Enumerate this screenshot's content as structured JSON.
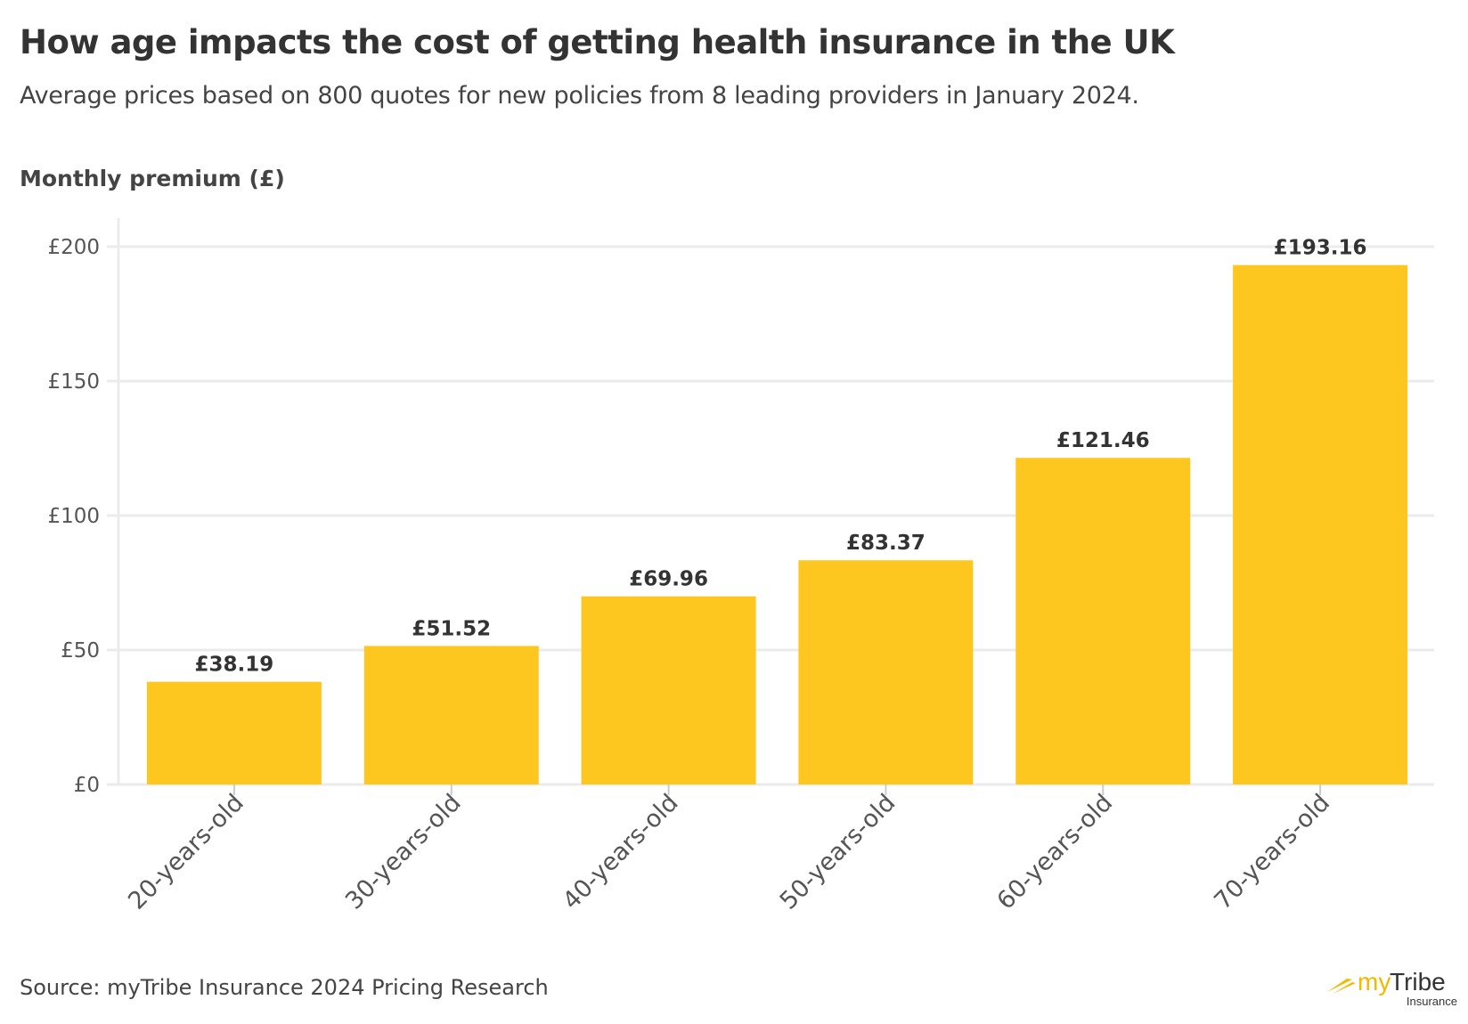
{
  "title": "How age impacts the cost of getting health insurance in the UK",
  "subtitle": "Average prices based on 800 quotes for new policies from 8 leading providers in January 2024.",
  "source": "Source: myTribe Insurance 2024 Pricing Research",
  "logo": {
    "brand_my": "my",
    "brand_tribe": "Tribe",
    "tagline": "Insurance"
  },
  "colors": {
    "bar": "#FEC720",
    "grid": "#EBEBEB",
    "brand": "#F5B800"
  },
  "chart_data": {
    "type": "bar",
    "title": "How age impacts the cost of getting health insurance in the UK",
    "ylabel": "Monthly premium (£)",
    "xlabel": "",
    "categories": [
      "20-years-old",
      "30-years-old",
      "40-years-old",
      "50-years-old",
      "60-years-old",
      "70-years-old"
    ],
    "values": [
      38.19,
      51.52,
      69.96,
      83.37,
      121.46,
      193.16
    ],
    "data_labels": [
      "£38.19",
      "£51.52",
      "£69.96",
      "£83.37",
      "£121.46",
      "£193.16"
    ],
    "yticks": [
      0,
      50,
      100,
      150,
      200
    ],
    "ytick_labels": [
      "£0",
      "£50",
      "£100",
      "£150",
      "£200"
    ],
    "ylim": [
      0,
      200
    ],
    "grid": true,
    "legend": "none"
  }
}
